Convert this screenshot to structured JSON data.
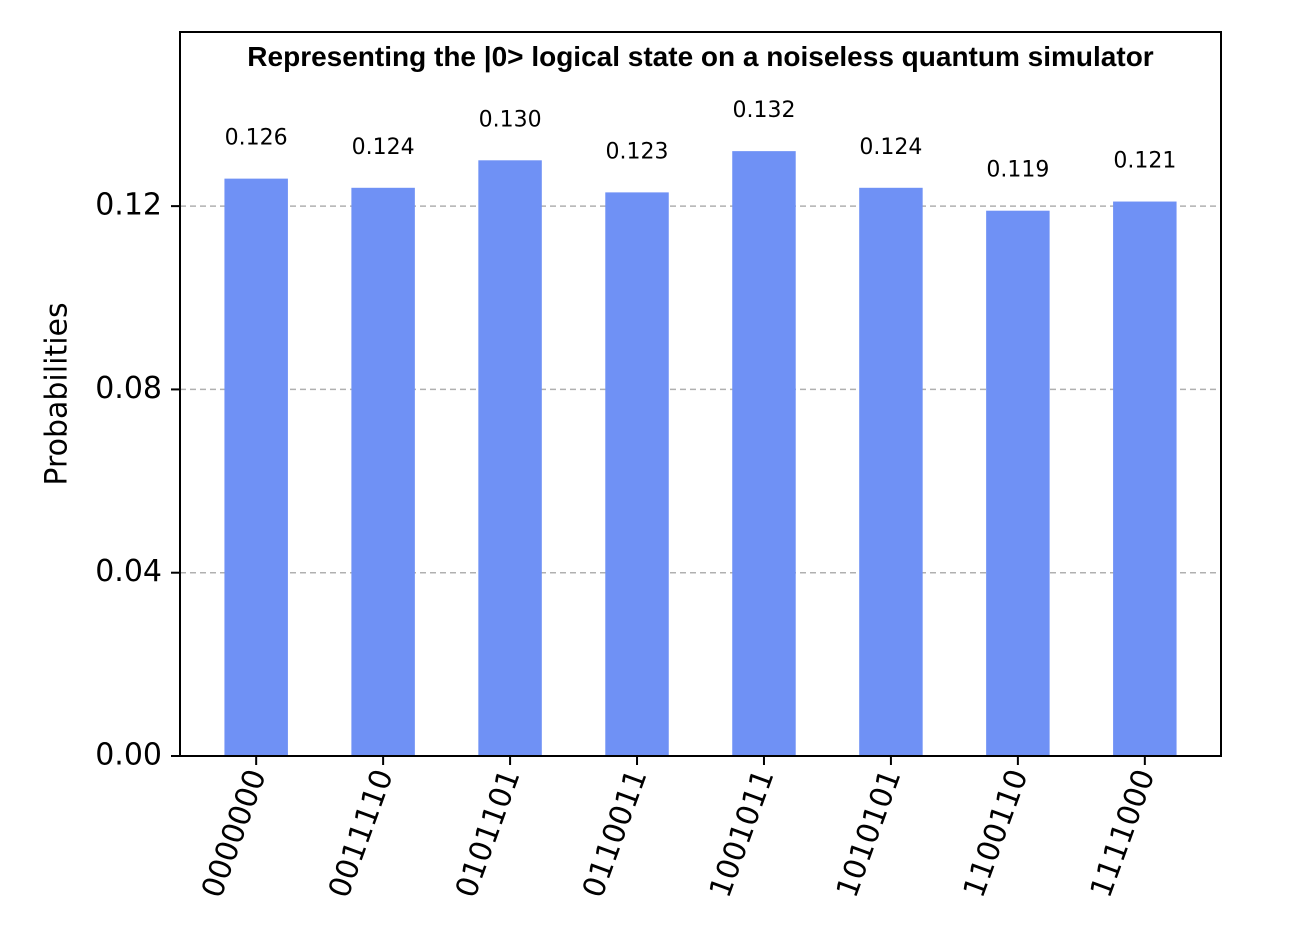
{
  "chart_data": {
    "type": "bar",
    "title": "Representing the |0> logical state on a noiseless quantum simulator",
    "xlabel": "",
    "ylabel": "Probabilities",
    "categories": [
      "0000000",
      "0011110",
      "0101101",
      "0110011",
      "1001011",
      "1010101",
      "1100110",
      "1111000"
    ],
    "values": [
      0.126,
      0.124,
      0.13,
      0.123,
      0.132,
      0.124,
      0.119,
      0.121
    ],
    "data_labels": [
      "0.126",
      "0.124",
      "0.130",
      "0.123",
      "0.132",
      "0.124",
      "0.119",
      "0.121"
    ],
    "yticks": [
      0.0,
      0.04,
      0.08,
      0.12
    ],
    "ytick_labels": [
      "0.00",
      "0.04",
      "0.08",
      "0.12"
    ],
    "ylim": [
      0,
      0.158
    ],
    "grid": "y-dashed",
    "bar_color": "#6f91f5",
    "grid_color": "#b0b0b0"
  }
}
